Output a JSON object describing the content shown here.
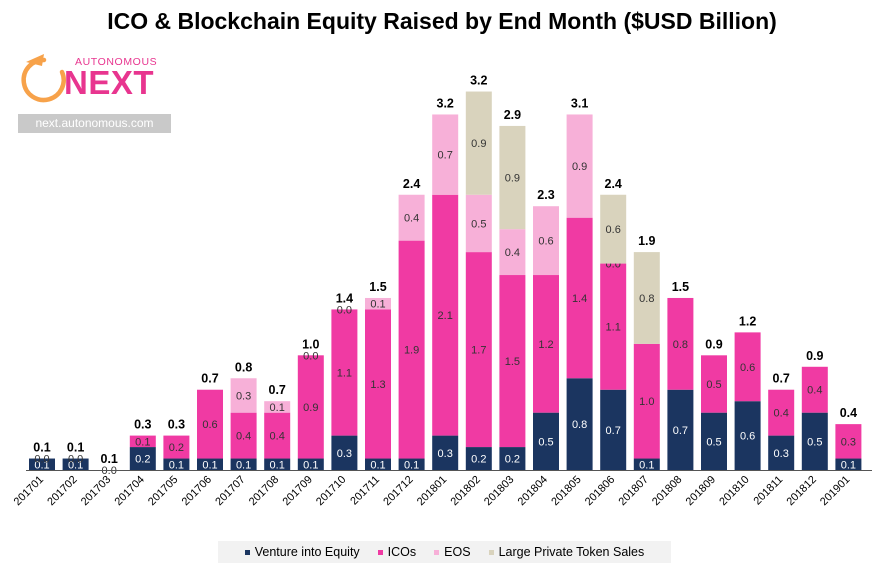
{
  "title": "ICO & Blockchain Equity Raised by End Month ($USD Billion)",
  "logo": {
    "small_text": "AUTONOMOUS",
    "big_text": "NEXT",
    "url": "next.autonomous.com"
  },
  "colors": {
    "venture": "#1b3560",
    "icos": "#f03aa3",
    "eos": "#f7b0d8",
    "private": "#d9d3bd",
    "brand": "#e8358f",
    "logo_orange": "#f7a24a"
  },
  "chart_data": {
    "type": "bar",
    "stacked": true,
    "categories": [
      "201701",
      "201702",
      "201703",
      "201704",
      "201705",
      "201706",
      "201707",
      "201708",
      "201709",
      "201710",
      "201711",
      "201712",
      "201801",
      "201802",
      "201803",
      "201804",
      "201805",
      "201806",
      "201807",
      "201808",
      "201809",
      "201810",
      "201811",
      "201812",
      "201901"
    ],
    "series": [
      {
        "name": "Venture into Equity",
        "values": [
          0.1,
          0.1,
          0.0,
          0.2,
          0.1,
          0.1,
          0.1,
          0.1,
          0.1,
          0.3,
          0.1,
          0.1,
          0.3,
          0.2,
          0.2,
          0.5,
          0.8,
          0.7,
          0.1,
          0.7,
          0.5,
          0.6,
          0.3,
          0.5,
          0.1
        ]
      },
      {
        "name": "ICOs",
        "values": [
          0.0,
          0.0,
          0.0,
          0.1,
          0.2,
          0.6,
          0.4,
          0.4,
          0.9,
          1.1,
          1.3,
          1.9,
          2.1,
          1.7,
          1.5,
          1.2,
          1.4,
          1.1,
          1.0,
          0.8,
          0.5,
          0.6,
          0.4,
          0.4,
          0.3
        ]
      },
      {
        "name": "EOS",
        "values": [
          0,
          0,
          0,
          0,
          0,
          0,
          0.3,
          0.1,
          0.0,
          0.0,
          0.1,
          0.4,
          0.7,
          0.5,
          0.4,
          0.6,
          0.9,
          0.0,
          0,
          0,
          0,
          0,
          0,
          0,
          0
        ]
      },
      {
        "name": "Large Private Token Sales",
        "values": [
          0,
          0,
          0,
          0,
          0,
          0,
          0,
          0,
          0,
          0,
          0,
          0,
          0,
          0.9,
          0.9,
          0,
          0,
          0.6,
          0.8,
          0,
          0,
          0,
          0,
          0,
          0
        ]
      }
    ],
    "labels": [
      [
        "0.1",
        "0.1",
        "0.0",
        "0.2",
        "0.1",
        "0.1",
        "0.1",
        "0.1",
        "0.1",
        "0.3",
        "0.1",
        "0.1",
        "0.3",
        "0.2",
        "0.2",
        "0.5",
        "0.8",
        "0.7",
        "0.1",
        "0.7",
        "0.5",
        "0.6",
        "0.3",
        "0.5",
        "0.1"
      ],
      [
        "0.0",
        "0.0",
        "0.0",
        "0.1",
        "0.2",
        "0.6",
        "0.4",
        "0.4",
        "0.9",
        "1.1",
        "1.3",
        "1.9",
        "2.1",
        "1.7",
        "1.5",
        "1.2",
        "1.4",
        "1.1",
        "1.0",
        "0.8",
        "0.5",
        "0.6",
        "0.4",
        "0.4",
        "0.3"
      ],
      [
        "",
        "",
        "",
        "",
        "",
        "",
        "0.3",
        "0.1",
        "0.0",
        "0.0",
        "0.1",
        "0.4",
        "0.7",
        "0.5",
        "0.4",
        "0.6",
        "0.9",
        "0.0",
        "",
        "",
        "",
        "",
        "",
        "",
        ""
      ],
      [
        "",
        "",
        "",
        "",
        "",
        "",
        "",
        "",
        "",
        "",
        "",
        "",
        "",
        "0.9",
        "0.9",
        "",
        "",
        "0.6",
        "0.8",
        "",
        "",
        "",
        "",
        "",
        ""
      ]
    ],
    "totals": [
      "0.1",
      "0.1",
      "0.1",
      "0.3",
      "0.3",
      "0.7",
      "0.8",
      "0.7",
      "1.0",
      "1.4",
      "1.5",
      "2.4",
      "3.2",
      "3.2",
      "2.9",
      "2.3",
      "3.1",
      "2.4",
      "1.9",
      "1.5",
      "0.9",
      "1.2",
      "0.7",
      "0.9",
      "0.4"
    ],
    "ylim": [
      0,
      3.2
    ],
    "grid": false,
    "legend_position": "bottom"
  }
}
